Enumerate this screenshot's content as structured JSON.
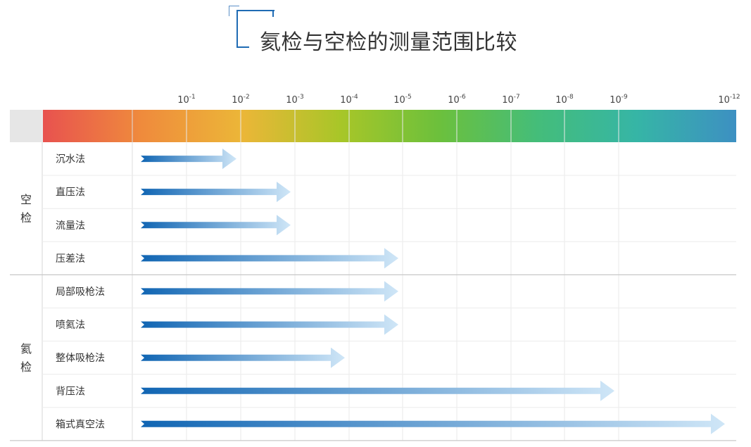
{
  "title": "氦检与空检的测量范围比较",
  "chart_data": {
    "type": "bar",
    "orientation": "horizontal",
    "x_scale": "log",
    "x_ticks": [
      {
        "base": "10",
        "exp": "-1",
        "value": 0.1
      },
      {
        "base": "10",
        "exp": "-2",
        "value": 0.01
      },
      {
        "base": "10",
        "exp": "-3",
        "value": 0.001
      },
      {
        "base": "10",
        "exp": "-4",
        "value": 0.0001
      },
      {
        "base": "10",
        "exp": "-5",
        "value": 1e-05
      },
      {
        "base": "10",
        "exp": "-6",
        "value": 1e-06
      },
      {
        "base": "10",
        "exp": "-7",
        "value": 1e-07
      },
      {
        "base": "10",
        "exp": "-8",
        "value": 1e-08
      },
      {
        "base": "10",
        "exp": "-9",
        "value": 1e-09
      },
      {
        "base": "10",
        "exp": "-12",
        "value": 1e-12
      }
    ],
    "groups": [
      {
        "label": "空检",
        "methods": [
          {
            "name": "沉水法",
            "range_end": 0.01
          },
          {
            "name": "直压法",
            "range_end": 0.001
          },
          {
            "name": "流量法",
            "range_end": 0.001
          },
          {
            "name": "压差法",
            "range_end": 1e-05
          }
        ]
      },
      {
        "label": "氦检",
        "methods": [
          {
            "name": "局部吸枪法",
            "range_end": 1e-05
          },
          {
            "name": "喷氦法",
            "range_end": 1e-05
          },
          {
            "name": "整体吸枪法",
            "range_end": 0.0001
          },
          {
            "name": "背压法",
            "range_end": 1e-09
          },
          {
            "name": "箱式真空法",
            "range_end": 1e-12
          }
        ]
      }
    ],
    "colors": {
      "spectrum": [
        "#e8524f",
        "#ef8b3c",
        "#ecb638",
        "#a8c628",
        "#6cc03c",
        "#44bd7a",
        "#36b5a6",
        "#3d90c2"
      ],
      "arrow_start": "#1065b3",
      "arrow_end": "#cfe6f7",
      "header_gray": "#e6e6e6"
    }
  }
}
